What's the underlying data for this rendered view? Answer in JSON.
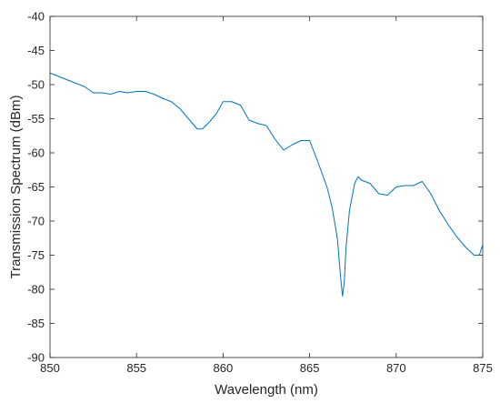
{
  "chart_data": {
    "type": "line",
    "title": "",
    "xlabel": "Wavelength (nm)",
    "ylabel": "Transmission Spectrum (dBm)",
    "xlim": [
      850,
      875
    ],
    "ylim": [
      -90,
      -40
    ],
    "xticks": [
      850,
      855,
      860,
      865,
      870,
      875
    ],
    "yticks": [
      -90,
      -85,
      -80,
      -75,
      -70,
      -65,
      -60,
      -55,
      -50,
      -45,
      -40
    ],
    "grid": false,
    "line_color": "#0072BD",
    "series": [
      {
        "x": [
          850.0,
          850.5,
          851.0,
          851.5,
          852.0,
          852.5,
          853.0,
          853.5,
          854.0,
          854.5,
          855.0,
          855.5,
          856.0,
          856.5,
          857.0,
          857.5,
          858.0,
          858.5,
          858.8,
          859.2,
          859.6,
          860.0,
          860.5,
          861.0,
          861.5,
          862.0,
          862.5,
          863.0,
          863.5,
          864.0,
          864.5,
          865.0,
          865.5,
          866.0,
          866.3,
          866.6,
          866.8,
          866.9,
          867.0,
          867.1,
          867.3,
          867.6,
          867.8,
          868.0,
          868.5,
          869.0,
          869.5,
          870.0,
          870.5,
          871.0,
          871.5,
          872.0,
          872.5,
          873.0,
          873.5,
          874.0,
          874.5,
          874.8,
          875.0
        ],
        "y": [
          -48.3,
          -48.8,
          -49.3,
          -49.8,
          -50.3,
          -51.2,
          -51.2,
          -51.4,
          -51.0,
          -51.2,
          -51.0,
          -51.0,
          -51.4,
          -52.0,
          -52.5,
          -53.5,
          -55.0,
          -56.5,
          -56.5,
          -55.5,
          -54.3,
          -52.5,
          -52.5,
          -53.0,
          -55.2,
          -55.7,
          -56.0,
          -58.0,
          -59.6,
          -58.8,
          -58.2,
          -58.2,
          -61.5,
          -65.0,
          -68.0,
          -72.5,
          -78.5,
          -81.0,
          -79.0,
          -74.0,
          -68.5,
          -64.5,
          -63.5,
          -64.0,
          -64.5,
          -66.0,
          -66.2,
          -65.0,
          -64.8,
          -64.8,
          -64.2,
          -66.0,
          -68.5,
          -70.5,
          -72.3,
          -73.8,
          -75.0,
          -75.0,
          -73.5
        ]
      }
    ]
  }
}
